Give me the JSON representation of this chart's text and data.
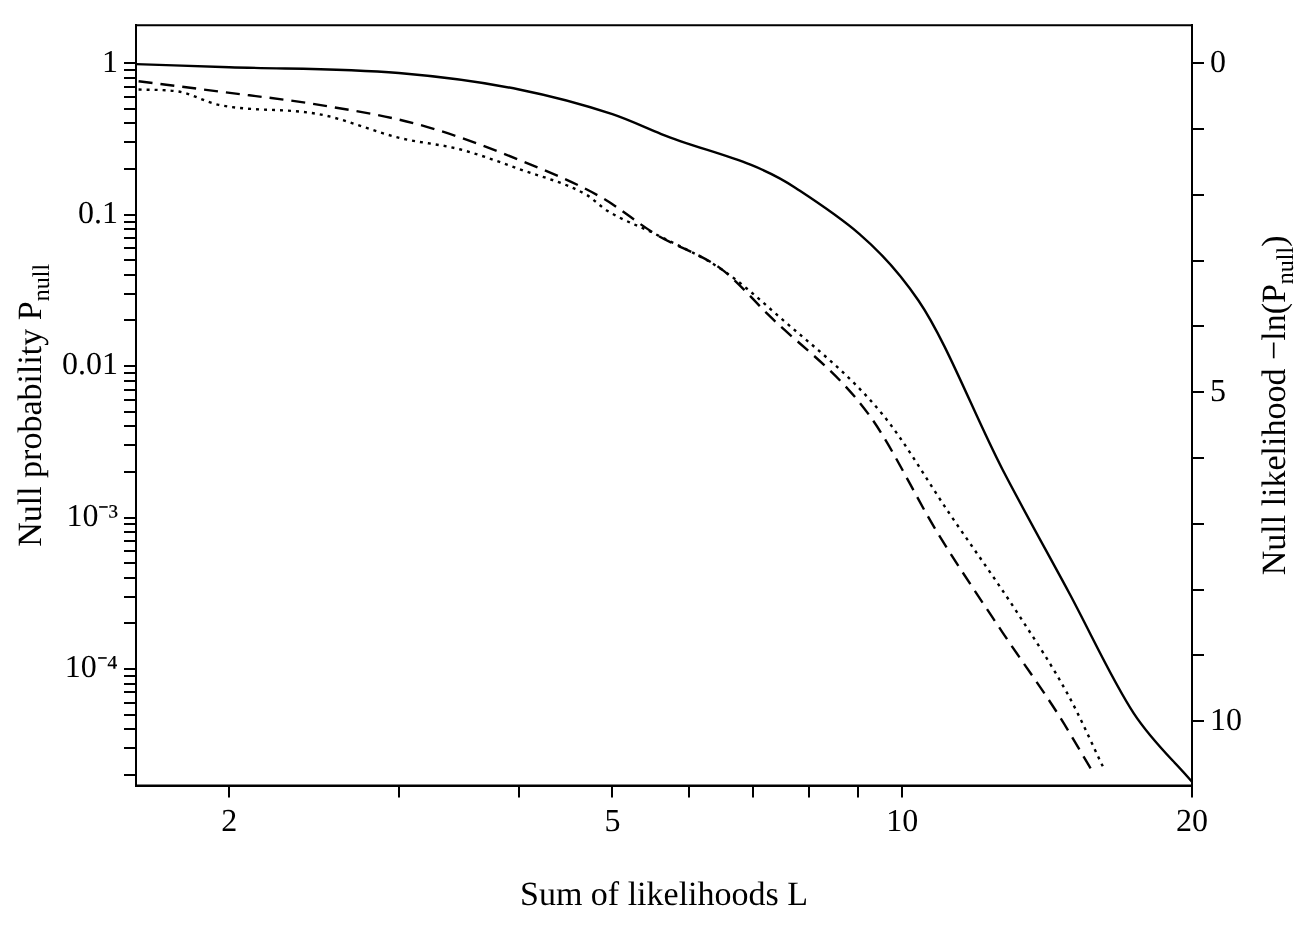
{
  "chart_data": {
    "type": "line",
    "xlabel": "Sum of likelihoods L",
    "ylabel": "Null probability P$_{null}$",
    "y2label": "Null likelihood −ln(P$_{null}$)",
    "log": "xy",
    "grid": false,
    "legend": false,
    "marker": "none",
    "xlim": [
      1.6,
      20
    ],
    "xticks": [
      2,
      {
        "value": 3,
        "label": null
      },
      {
        "value": 4,
        "label": null
      },
      5,
      {
        "value": 6,
        "label": null
      },
      {
        "value": 7,
        "label": null
      },
      {
        "value": 8,
        "label": null
      },
      {
        "value": 9,
        "label": null
      },
      10,
      20
    ],
    "ylim": [
      1.7e-05,
      1.78
    ],
    "yticks": [
      {
        "value": 2e-05,
        "label": null
      },
      {
        "value": 3e-05,
        "label": null
      },
      {
        "value": 4e-05,
        "label": null
      },
      {
        "value": 5e-05,
        "label": null
      },
      {
        "value": 6e-05,
        "label": null
      },
      {
        "value": 7e-05,
        "label": null
      },
      {
        "value": 8e-05,
        "label": null
      },
      {
        "value": 9e-05,
        "label": null
      },
      {
        "value": 0.0001,
        "label": "10⁻⁴"
      },
      {
        "value": 0.0002,
        "label": null
      },
      {
        "value": 0.0003,
        "label": null
      },
      {
        "value": 0.0004,
        "label": null
      },
      {
        "value": 0.0005,
        "label": null
      },
      {
        "value": 0.0006,
        "label": null
      },
      {
        "value": 0.0007,
        "label": null
      },
      {
        "value": 0.0008,
        "label": null
      },
      {
        "value": 0.0009,
        "label": null
      },
      {
        "value": 0.001,
        "label": "10⁻³"
      },
      {
        "value": 0.002,
        "label": null
      },
      {
        "value": 0.003,
        "label": null
      },
      {
        "value": 0.004,
        "label": null
      },
      {
        "value": 0.005,
        "label": null
      },
      {
        "value": 0.006,
        "label": null
      },
      {
        "value": 0.007,
        "label": null
      },
      {
        "value": 0.008,
        "label": null
      },
      {
        "value": 0.009,
        "label": null
      },
      0.01,
      {
        "value": 0.02,
        "label": null
      },
      {
        "value": 0.03,
        "label": null
      },
      {
        "value": 0.04,
        "label": null
      },
      {
        "value": 0.05,
        "label": null
      },
      {
        "value": 0.06,
        "label": null
      },
      {
        "value": 0.07,
        "label": null
      },
      {
        "value": 0.08,
        "label": null
      },
      {
        "value": 0.09,
        "label": null
      },
      0.1,
      {
        "value": 0.2,
        "label": null
      },
      {
        "value": 0.3,
        "label": null
      },
      {
        "value": 0.4,
        "label": null
      },
      {
        "value": 0.5,
        "label": null
      },
      {
        "value": 0.6,
        "label": null
      },
      {
        "value": 0.7,
        "label": null
      },
      {
        "value": 0.8,
        "label": null
      },
      {
        "value": 0.9,
        "label": null
      },
      1
    ],
    "y2lim": [
      10.98,
      -0.58
    ],
    "y2ticks": [
      0,
      {
        "value": 1,
        "label": null
      },
      {
        "value": 2,
        "label": null
      },
      {
        "value": 3,
        "label": null
      },
      {
        "value": 4,
        "label": null
      },
      5,
      {
        "value": 6,
        "label": null
      },
      {
        "value": 7,
        "label": null
      },
      {
        "value": 8,
        "label": null
      },
      {
        "value": 9,
        "label": null
      },
      10
    ],
    "series": [
      {
        "color": "#000000",
        "line_style": "solid",
        "x": [
          1.6,
          2,
          3,
          4,
          5,
          5.62,
          7.75,
          10.4,
          12.7,
          14.9,
          17.4,
          20
        ],
        "values": [
          0.985,
          0.94,
          0.86,
          0.67,
          0.46,
          0.34,
          0.15,
          0.027,
          0.0021,
          0.00032,
          5.1e-05,
          1.8e-05
        ]
      },
      {
        "color": "#000000",
        "line_style": "dashed",
        "x": [
          1.61,
          1.95,
          2.48,
          3.16,
          4.0,
          4.87,
          5.55,
          6.51,
          7.25,
          9.23,
          10.9,
          12.7,
          14.5,
          15.7
        ],
        "values": [
          0.76,
          0.65,
          0.53,
          0.39,
          0.23,
          0.13,
          0.074,
          0.043,
          0.022,
          0.0048,
          0.00078,
          0.000176,
          5.1e-05,
          2.2e-05
        ]
      },
      {
        "color": "#000000",
        "line_style": "dotted",
        "x": [
          1.61,
          1.77,
          1.95,
          2.48,
          3.01,
          3.47,
          4.0,
          4.7,
          4.94,
          5.55,
          6.51,
          7.4,
          9.54,
          11.2,
          13.2,
          14.9,
          16.2
        ],
        "values": [
          0.67,
          0.65,
          0.53,
          0.46,
          0.32,
          0.27,
          0.2,
          0.135,
          0.106,
          0.074,
          0.043,
          0.022,
          0.0048,
          0.00106,
          0.00023,
          6.6e-05,
          2.2e-05
        ]
      }
    ]
  }
}
